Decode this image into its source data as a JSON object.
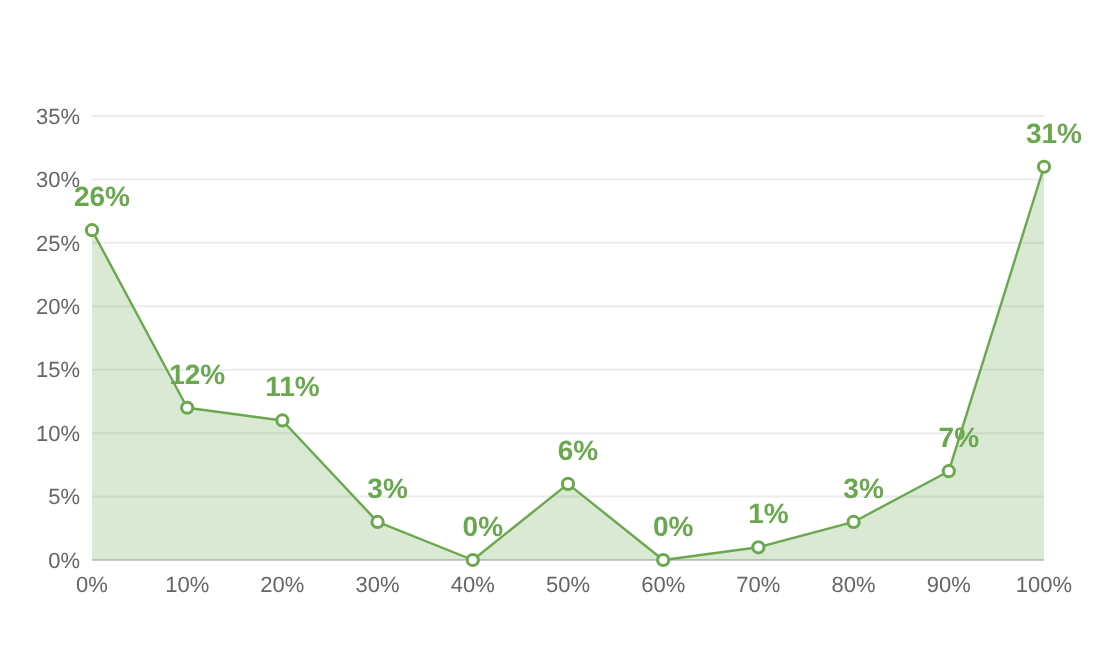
{
  "chart_data": {
    "type": "area",
    "categories": [
      "0%",
      "10%",
      "20%",
      "30%",
      "40%",
      "50%",
      "60%",
      "70%",
      "80%",
      "90%",
      "100%"
    ],
    "series": [
      {
        "color": "#6aa84f",
        "values": [
          26,
          12,
          11,
          3,
          0,
          6,
          0,
          1,
          3,
          7,
          31
        ]
      }
    ],
    "value_labels": [
      "26%",
      "12%",
      "11%",
      "3%",
      "0%",
      "6%",
      "0%",
      "1%",
      "3%",
      "7%",
      "31%"
    ],
    "ylim": [
      0,
      35
    ],
    "yticks": [
      {
        "value": 0,
        "label": "0%"
      },
      {
        "value": 5,
        "label": "5%"
      },
      {
        "value": 10,
        "label": "10%"
      },
      {
        "value": 15,
        "label": "15%"
      },
      {
        "value": 20,
        "label": "20%"
      },
      {
        "value": 25,
        "label": "25%"
      },
      {
        "value": 30,
        "label": "30%"
      },
      {
        "value": 35,
        "label": "35%"
      }
    ],
    "grid": "y",
    "marker": "circle"
  }
}
